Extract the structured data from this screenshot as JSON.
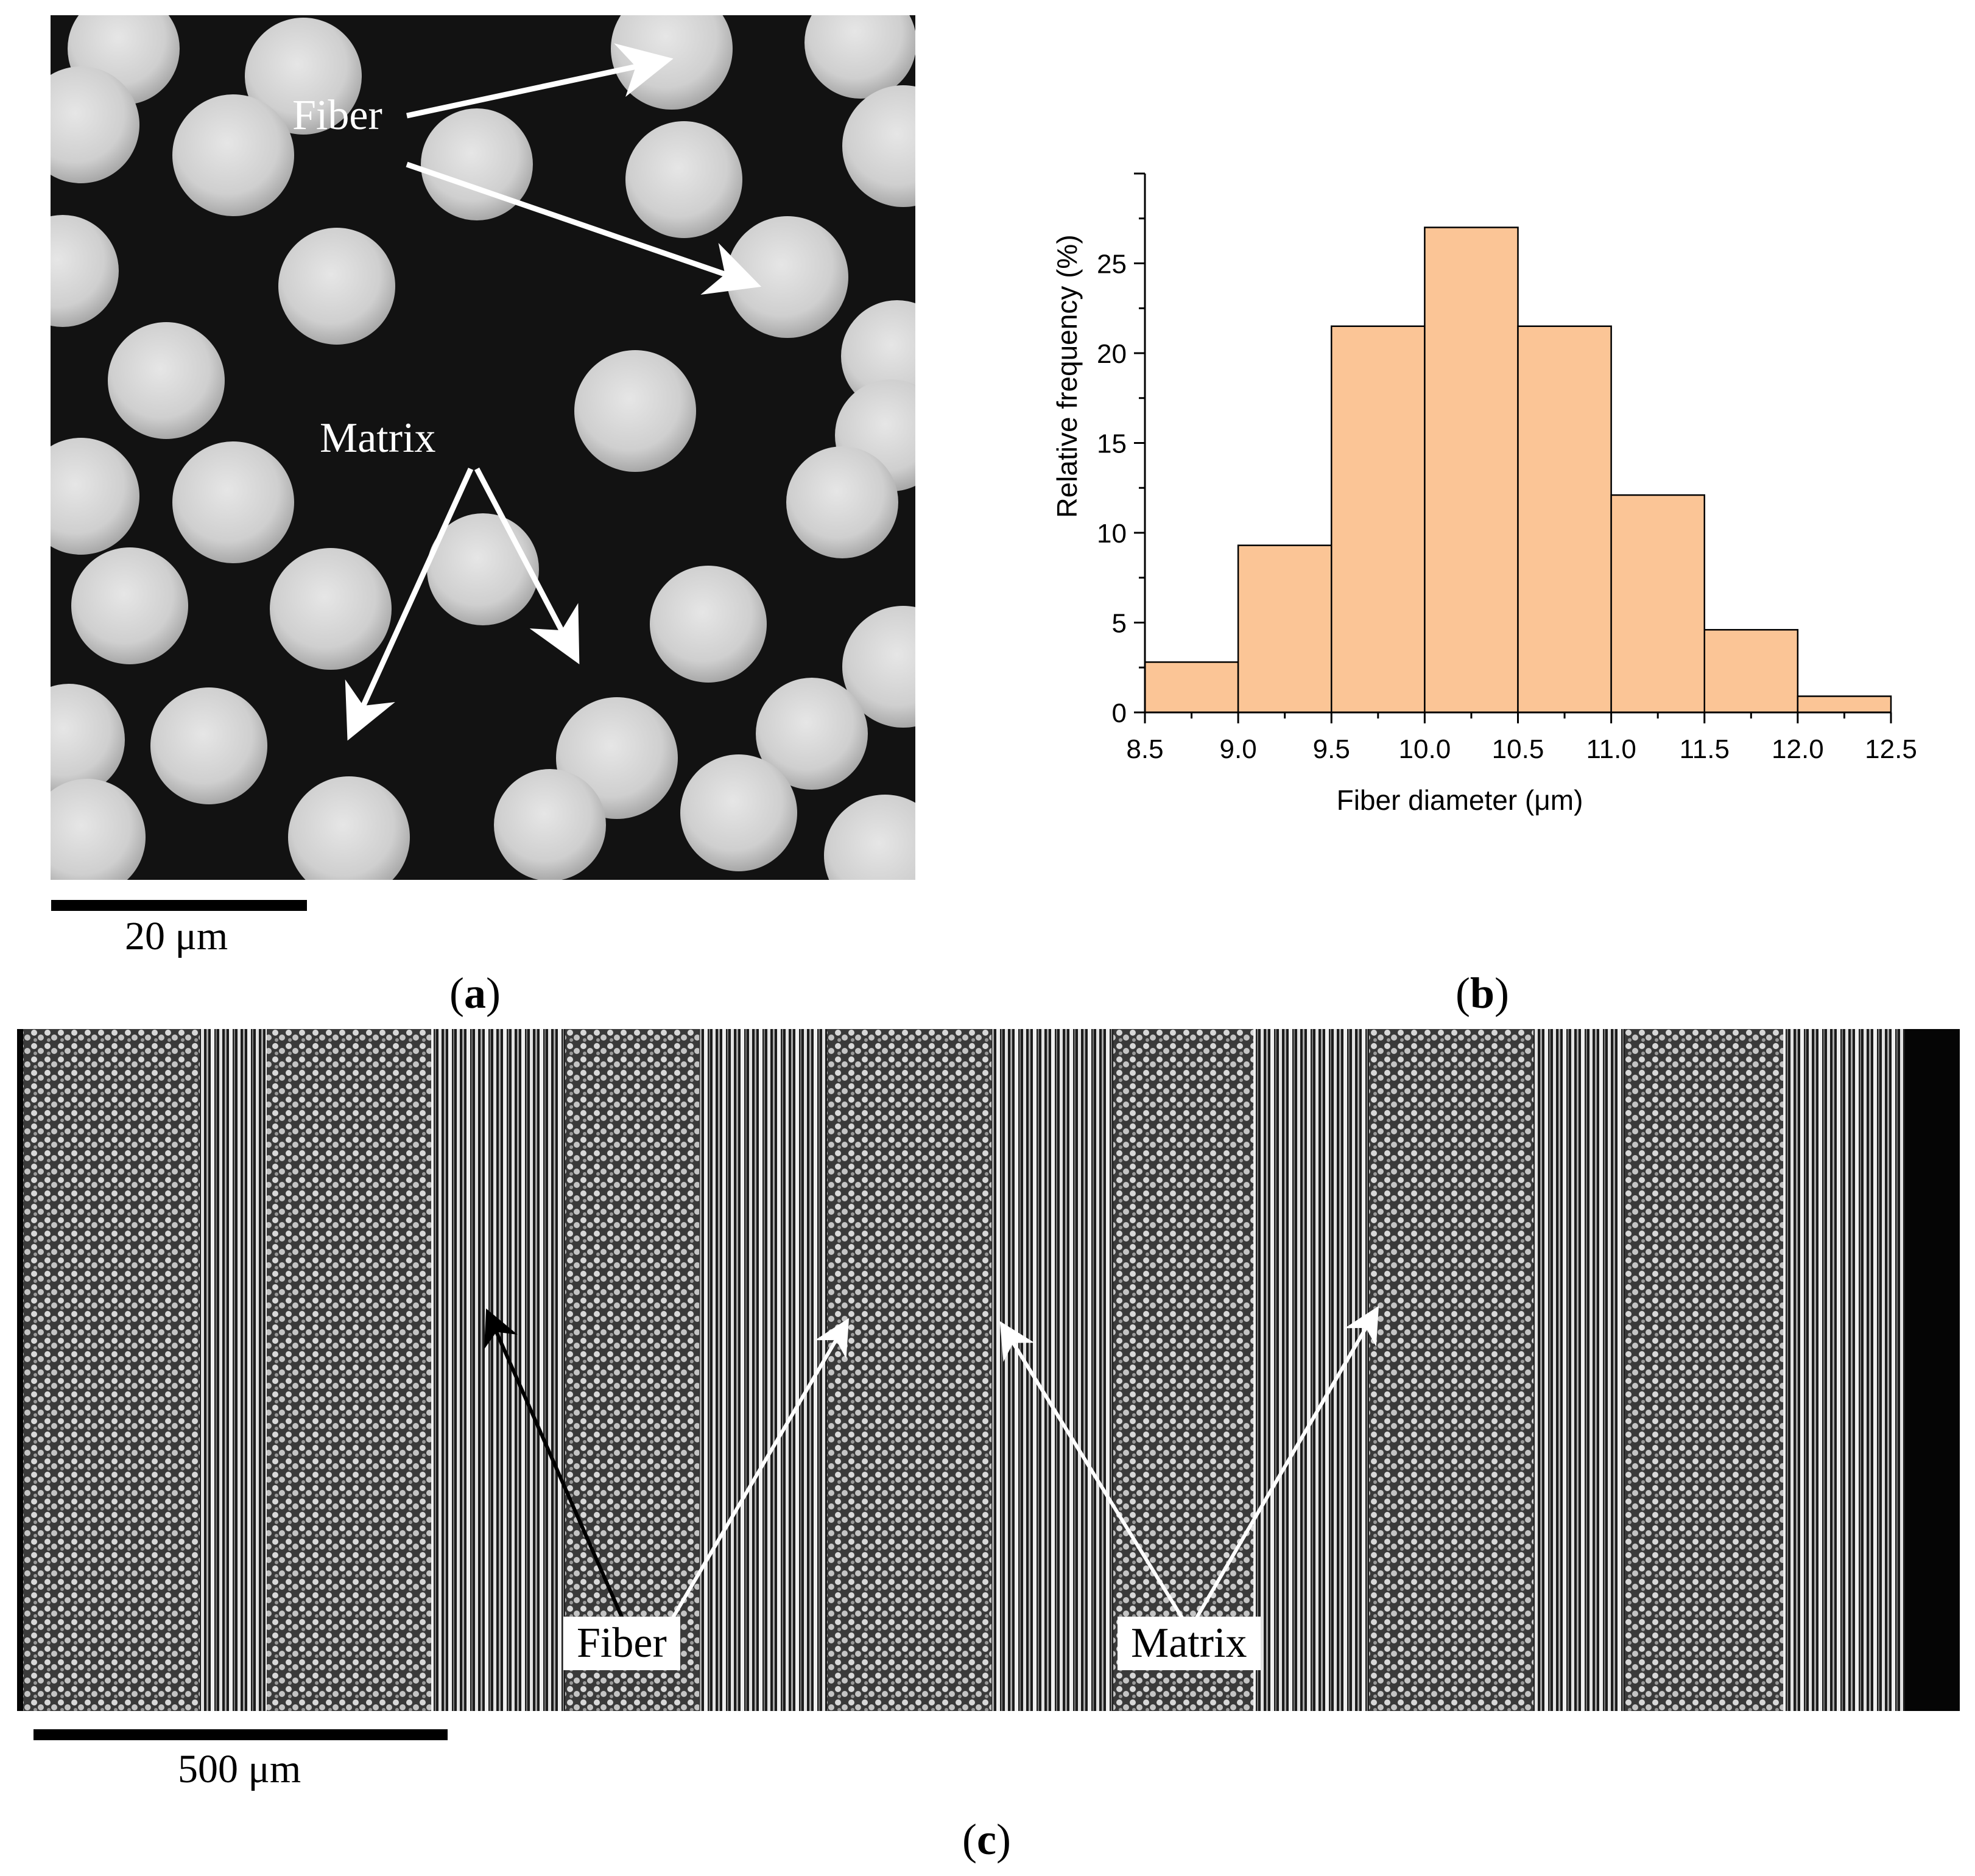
{
  "panels": {
    "a": {
      "label": "a",
      "annotations": [
        "Fiber",
        "Matrix"
      ],
      "scale_bar": "20 μm"
    },
    "b": {
      "label": "b"
    },
    "c": {
      "label": "c",
      "annotations": [
        "Fiber",
        "Matrix"
      ],
      "scale_bar": "500 μm"
    }
  },
  "colors": {
    "bar_fill": "#fbc596",
    "bar_stroke": "#000000",
    "micro_background": "#0a0a0a",
    "fiber_gray": "#d2d2d2"
  },
  "chart_data": {
    "type": "bar",
    "histogram": true,
    "bin_edges": [
      8.5,
      9.0,
      9.5,
      10.0,
      10.5,
      11.0,
      11.5,
      12.0,
      12.5
    ],
    "values": [
      2.8,
      9.3,
      21.5,
      27.0,
      21.5,
      12.1,
      4.6,
      0.9
    ],
    "xlabel": "Fiber diameter (μm)",
    "ylabel": "Relative frequency (%)",
    "xlim": [
      8.5,
      12.5
    ],
    "ylim": [
      0,
      30
    ],
    "x_ticks": [
      "8.5",
      "9.0",
      "9.5",
      "10.0",
      "10.5",
      "11.0",
      "11.5",
      "12.0",
      "12.5"
    ],
    "y_ticks": [
      "0",
      "5",
      "10",
      "15",
      "20",
      "25"
    ],
    "grid": false,
    "legend": "none"
  }
}
